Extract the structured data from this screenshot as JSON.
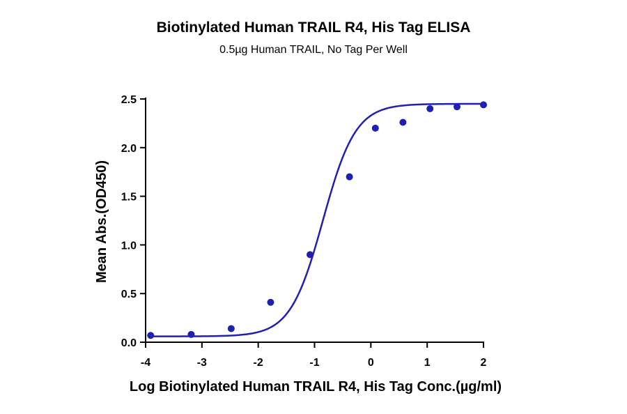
{
  "chart_data": {
    "type": "scatter",
    "title": "Biotinylated Human TRAIL R4, His Tag ELISA",
    "subtitle": "0.5µg Human TRAIL, No Tag Per Well",
    "xlabel": "Log Biotinylated Human TRAIL R4, His Tag Conc.(µg/ml)",
    "ylabel": "Mean Abs.(OD450)",
    "xlim": [
      -4,
      2
    ],
    "ylim": [
      0,
      2.5
    ],
    "xticks": [
      "-4",
      "-3",
      "-2",
      "-1",
      "0",
      "1",
      "2"
    ],
    "yticks": [
      "0.0",
      "0.5",
      "1.0",
      "1.5",
      "2.0",
      "2.5"
    ],
    "grid": false,
    "series": [
      {
        "points": [
          {
            "x": -3.91,
            "y": 0.07
          },
          {
            "x": -3.19,
            "y": 0.08
          },
          {
            "x": -2.48,
            "y": 0.14
          },
          {
            "x": -1.78,
            "y": 0.41
          },
          {
            "x": -1.08,
            "y": 0.9
          },
          {
            "x": -0.38,
            "y": 1.7
          },
          {
            "x": 0.08,
            "y": 2.2
          },
          {
            "x": 0.57,
            "y": 2.26
          },
          {
            "x": 1.05,
            "y": 2.4
          },
          {
            "x": 1.53,
            "y": 2.42
          },
          {
            "x": 2.0,
            "y": 2.44
          }
        ],
        "fit": {
          "model": "4PL",
          "bottom": 0.06,
          "top": 2.45,
          "logEC50": -0.85,
          "hill": 1.5
        }
      }
    ],
    "colors": {
      "series": "#1f1fb4",
      "axes": "#000000"
    }
  }
}
